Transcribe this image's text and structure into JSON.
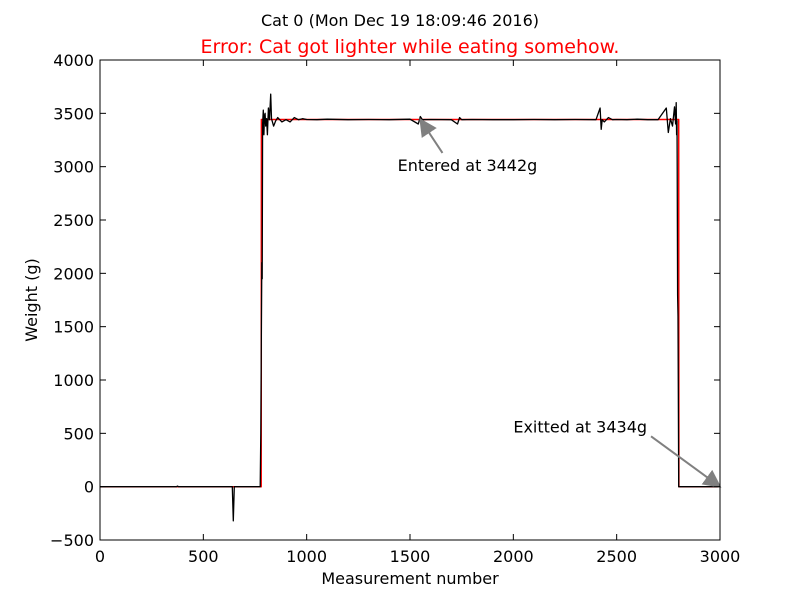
{
  "chart_data": {
    "type": "line",
    "title": "Cat 0 (Mon Dec 19 18:09:46 2016)",
    "subtitle": "Error: Cat got lighter while eating somehow.",
    "xlabel": "Measurement number",
    "ylabel": "Weight (g)",
    "xlim": [
      0,
      3000
    ],
    "ylim": [
      -500,
      4000
    ],
    "xticks": [
      0,
      500,
      1000,
      1500,
      2000,
      2500,
      3000
    ],
    "yticks": [
      -500,
      0,
      500,
      1000,
      1500,
      2000,
      2500,
      3000,
      3500,
      4000
    ],
    "grid": false,
    "colors": {
      "raw": "#000000",
      "filtered": "#ff0000",
      "subtitle": "#ff0000",
      "arrow": "#808080"
    },
    "series": [
      {
        "style": "raw",
        "x": [
          0,
          370,
          375,
          380,
          500,
          640,
          645,
          650,
          655,
          660,
          775,
          778,
          781,
          783,
          785,
          787,
          790,
          793,
          796,
          799,
          802,
          806,
          810,
          815,
          820,
          826,
          830,
          840,
          850,
          860,
          880,
          900,
          920,
          940,
          960,
          980,
          1000,
          1050,
          1100,
          1200,
          1300,
          1400,
          1500,
          1540,
          1550,
          1560,
          1600,
          1700,
          1730,
          1740,
          1750,
          1800,
          1900,
          2000,
          2100,
          2200,
          2300,
          2400,
          2420,
          2425,
          2430,
          2440,
          2460,
          2480,
          2500,
          2550,
          2600,
          2650,
          2700,
          2740,
          2750,
          2760,
          2770,
          2780,
          2785,
          2788,
          2790,
          2792,
          2793,
          2795,
          2797,
          2800,
          2805,
          2810,
          2900,
          3000
        ],
        "y": [
          0,
          0,
          5,
          0,
          0,
          0,
          -320,
          0,
          0,
          0,
          0,
          500,
          1500,
          2100,
          1950,
          3400,
          3530,
          3300,
          3480,
          3500,
          3380,
          3450,
          3300,
          3550,
          3440,
          3680,
          3450,
          3380,
          3430,
          3460,
          3420,
          3440,
          3420,
          3460,
          3440,
          3450,
          3442,
          3440,
          3445,
          3440,
          3442,
          3440,
          3445,
          3400,
          3470,
          3440,
          3442,
          3440,
          3400,
          3460,
          3440,
          3442,
          3440,
          3440,
          3442,
          3440,
          3442,
          3440,
          3550,
          3350,
          3440,
          3420,
          3460,
          3440,
          3442,
          3440,
          3445,
          3440,
          3440,
          3550,
          3320,
          3450,
          3380,
          3560,
          3400,
          3600,
          3300,
          3430,
          3000,
          1800,
          1600,
          0,
          0,
          0,
          0,
          0
        ]
      },
      {
        "style": "filtered",
        "x": [
          0,
          780,
          781,
          1200,
          1250,
          1800,
          1850,
          2800,
          2801,
          3000
        ],
        "y": [
          0,
          0,
          3442,
          3442,
          3442,
          3442,
          3442,
          3442,
          0,
          0
        ]
      }
    ],
    "annotations": [
      {
        "text": "Entered at 3442g",
        "point": [
          1550,
          3442
        ],
        "text_at": [
          1440,
          2960
        ]
      },
      {
        "text": "Exitted at 3434g",
        "point": [
          3000,
          0
        ],
        "text_at": [
          2000,
          510
        ]
      }
    ]
  }
}
